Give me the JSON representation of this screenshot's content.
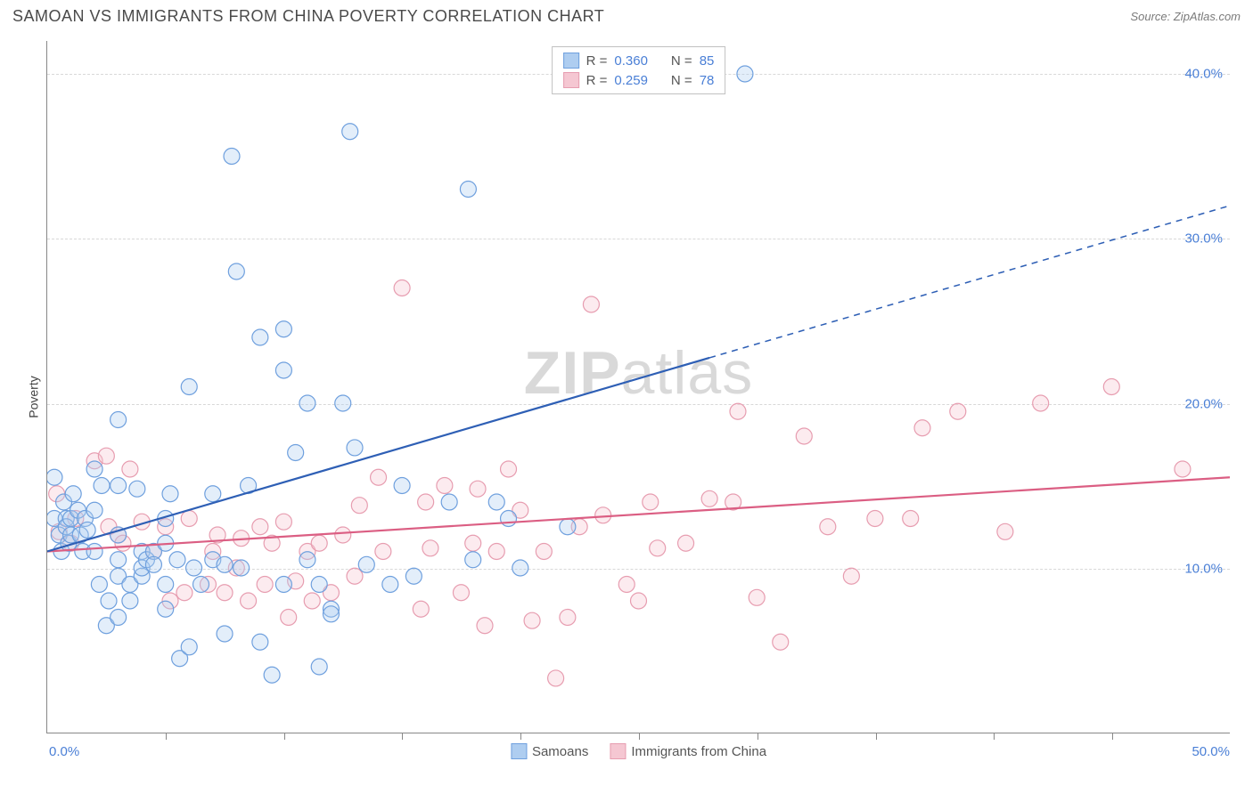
{
  "title": "SAMOAN VS IMMIGRANTS FROM CHINA POVERTY CORRELATION CHART",
  "source": "Source: ZipAtlas.com",
  "ylabel": "Poverty",
  "watermark_bold": "ZIP",
  "watermark_rest": "atlas",
  "chart": {
    "type": "scatter",
    "xlim": [
      0,
      50
    ],
    "ylim": [
      0,
      42
    ],
    "x_min_label": "0.0%",
    "x_max_label": "50.0%",
    "y_ticks": [
      10,
      20,
      30,
      40
    ],
    "y_tick_labels": [
      "10.0%",
      "20.0%",
      "30.0%",
      "40.0%"
    ],
    "x_ticks": [
      5,
      10,
      15,
      20,
      25,
      30,
      35,
      40,
      45
    ],
    "marker_radius": 9,
    "marker_stroke_width": 1.2,
    "marker_fill_opacity": 0.35,
    "line_width": 2.2,
    "grid_color": "#d8d8d8",
    "axis_color": "#888888",
    "tick_label_color": "#4a7fd6",
    "background_color": "#ffffff"
  },
  "series": {
    "samoans": {
      "label": "Samoans",
      "color_stroke": "#6fa0de",
      "color_fill": "#aecdf0",
      "line_color": "#2e5fb5",
      "R": "0.360",
      "N": "85",
      "trend": {
        "x1": 0,
        "y1": 11,
        "x2": 50,
        "y2": 32,
        "solid_end_x": 28
      },
      "points": [
        [
          0.3,
          13
        ],
        [
          0.3,
          15.5
        ],
        [
          0.5,
          12
        ],
        [
          0.6,
          11
        ],
        [
          0.7,
          14
        ],
        [
          0.8,
          13
        ],
        [
          0.8,
          12.5
        ],
        [
          0.9,
          11.5
        ],
        [
          1,
          12
        ],
        [
          1,
          13
        ],
        [
          1.1,
          14.5
        ],
        [
          1.3,
          13.5
        ],
        [
          1.4,
          12
        ],
        [
          1.5,
          11
        ],
        [
          1.6,
          13
        ],
        [
          1.7,
          12.3
        ],
        [
          2,
          11
        ],
        [
          2,
          13.5
        ],
        [
          2,
          16
        ],
        [
          2.2,
          9
        ],
        [
          2.3,
          15
        ],
        [
          2.5,
          6.5
        ],
        [
          2.6,
          8
        ],
        [
          3,
          7
        ],
        [
          3,
          9.5
        ],
        [
          3,
          10.5
        ],
        [
          3,
          12
        ],
        [
          3,
          15
        ],
        [
          3,
          19
        ],
        [
          3.5,
          9
        ],
        [
          3.5,
          8
        ],
        [
          3.8,
          14.8
        ],
        [
          4,
          9.5
        ],
        [
          4,
          10
        ],
        [
          4,
          11
        ],
        [
          4.2,
          10.5
        ],
        [
          4.5,
          11
        ],
        [
          4.5,
          10.2
        ],
        [
          5,
          7.5
        ],
        [
          5,
          9
        ],
        [
          5,
          11.5
        ],
        [
          5,
          13
        ],
        [
          5.2,
          14.5
        ],
        [
          5.5,
          10.5
        ],
        [
          5.6,
          4.5
        ],
        [
          6,
          21
        ],
        [
          6,
          5.2
        ],
        [
          6.2,
          10
        ],
        [
          6.5,
          9
        ],
        [
          7,
          10.5
        ],
        [
          7,
          14.5
        ],
        [
          7.5,
          6
        ],
        [
          7.5,
          10.2
        ],
        [
          7.8,
          35
        ],
        [
          8,
          28
        ],
        [
          8.2,
          10
        ],
        [
          8.5,
          15
        ],
        [
          9,
          24
        ],
        [
          9,
          5.5
        ],
        [
          9.5,
          3.5
        ],
        [
          10,
          22
        ],
        [
          10,
          9
        ],
        [
          10,
          24.5
        ],
        [
          10.5,
          17
        ],
        [
          11,
          10.5
        ],
        [
          11,
          20
        ],
        [
          11.5,
          4
        ],
        [
          11.5,
          9
        ],
        [
          12,
          7.5
        ],
        [
          12,
          7.2
        ],
        [
          12.5,
          20
        ],
        [
          12.8,
          36.5
        ],
        [
          13,
          17.3
        ],
        [
          13.5,
          10.2
        ],
        [
          14.5,
          9
        ],
        [
          15,
          15
        ],
        [
          15.5,
          9.5
        ],
        [
          17,
          14
        ],
        [
          17.8,
          33
        ],
        [
          18,
          10.5
        ],
        [
          19,
          14
        ],
        [
          19.5,
          13
        ],
        [
          20,
          10
        ],
        [
          22,
          12.5
        ],
        [
          29.5,
          40
        ]
      ]
    },
    "china": {
      "label": "Immigrants from China",
      "color_stroke": "#e79db0",
      "color_fill": "#f5c7d2",
      "line_color": "#db5e83",
      "R": "0.259",
      "N": "78",
      "trend": {
        "x1": 0,
        "y1": 11,
        "x2": 50,
        "y2": 15.5,
        "solid_end_x": 50
      },
      "points": [
        [
          0.4,
          14.5
        ],
        [
          0.5,
          12.2
        ],
        [
          1,
          11.5
        ],
        [
          1.2,
          13
        ],
        [
          2,
          16.5
        ],
        [
          2.5,
          16.8
        ],
        [
          2.6,
          12.5
        ],
        [
          3,
          12
        ],
        [
          3.2,
          11.5
        ],
        [
          3.5,
          16
        ],
        [
          4,
          12.8
        ],
        [
          4.5,
          11
        ],
        [
          5,
          12.5
        ],
        [
          5.2,
          8
        ],
        [
          5.8,
          8.5
        ],
        [
          6,
          13
        ],
        [
          6.8,
          9
        ],
        [
          7,
          11
        ],
        [
          7.2,
          12
        ],
        [
          7.5,
          8.5
        ],
        [
          8,
          10
        ],
        [
          8.2,
          11.8
        ],
        [
          8.5,
          8
        ],
        [
          9,
          12.5
        ],
        [
          9.2,
          9
        ],
        [
          9.5,
          11.5
        ],
        [
          10,
          12.8
        ],
        [
          10.2,
          7
        ],
        [
          10.5,
          9.2
        ],
        [
          11,
          11
        ],
        [
          11.2,
          8
        ],
        [
          11.5,
          11.5
        ],
        [
          12,
          8.5
        ],
        [
          12.5,
          12
        ],
        [
          13,
          9.5
        ],
        [
          13.2,
          13.8
        ],
        [
          14,
          15.5
        ],
        [
          14.2,
          11
        ],
        [
          15,
          27
        ],
        [
          15.8,
          7.5
        ],
        [
          16,
          14
        ],
        [
          16.2,
          11.2
        ],
        [
          16.8,
          15
        ],
        [
          17.5,
          8.5
        ],
        [
          18,
          11.5
        ],
        [
          18.2,
          14.8
        ],
        [
          18.5,
          6.5
        ],
        [
          19,
          11
        ],
        [
          19.5,
          16
        ],
        [
          20,
          13.5
        ],
        [
          20.5,
          6.8
        ],
        [
          21,
          11
        ],
        [
          21.5,
          3.3
        ],
        [
          22,
          7
        ],
        [
          22.5,
          12.5
        ],
        [
          23,
          26
        ],
        [
          23.5,
          13.2
        ],
        [
          24.5,
          9
        ],
        [
          25,
          8
        ],
        [
          25.5,
          14
        ],
        [
          25.8,
          11.2
        ],
        [
          27,
          11.5
        ],
        [
          28,
          14.2
        ],
        [
          29,
          14
        ],
        [
          29.2,
          19.5
        ],
        [
          30,
          8.2
        ],
        [
          31,
          5.5
        ],
        [
          32,
          18
        ],
        [
          33,
          12.5
        ],
        [
          34,
          9.5
        ],
        [
          35,
          13
        ],
        [
          36.5,
          13
        ],
        [
          37,
          18.5
        ],
        [
          38.5,
          19.5
        ],
        [
          40.5,
          12.2
        ],
        [
          42,
          20
        ],
        [
          45,
          21
        ],
        [
          48,
          16
        ]
      ]
    }
  },
  "legend_top_rows": [
    {
      "swatch": "samoans",
      "R_label": "R =",
      "N_label": "N ="
    },
    {
      "swatch": "china",
      "R_label": "R =",
      "N_label": "N ="
    }
  ]
}
